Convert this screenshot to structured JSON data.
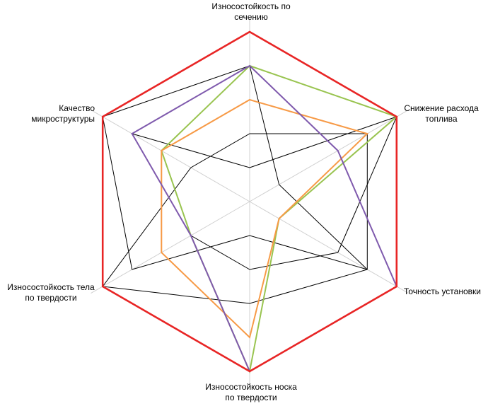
{
  "chart_data": {
    "type": "radar",
    "axes": [
      "Износостойкость по\nсечению",
      "Снижение расхода\nтоплива",
      "Точность установки",
      "Износостойкость носка\nпо твердости",
      "Износостойкость тела\nпо твердости",
      "Качество\nмикроструктуры"
    ],
    "rlim": [
      0,
      5
    ],
    "grid": true,
    "gridlines": "spokes",
    "legend": "none",
    "series": [
      {
        "color": "#000000",
        "values": [
          2,
          4,
          4,
          3,
          5,
          2
        ]
      },
      {
        "color": "#000000",
        "values": [
          4,
          1,
          4,
          1,
          4,
          5
        ]
      },
      {
        "color": "#000000",
        "values": [
          1,
          5,
          3,
          2,
          2,
          4
        ]
      },
      {
        "color": "#99c450",
        "values": [
          4,
          5,
          1,
          5,
          2,
          3
        ]
      },
      {
        "color": "#f79a46",
        "values": [
          3,
          4,
          1,
          4,
          3,
          3
        ]
      },
      {
        "color": "#7f5aad",
        "values": [
          4,
          3,
          5,
          5,
          2,
          4
        ]
      },
      {
        "color": "#e82525",
        "values": [
          5,
          5,
          5,
          5,
          5,
          5
        ]
      }
    ]
  }
}
